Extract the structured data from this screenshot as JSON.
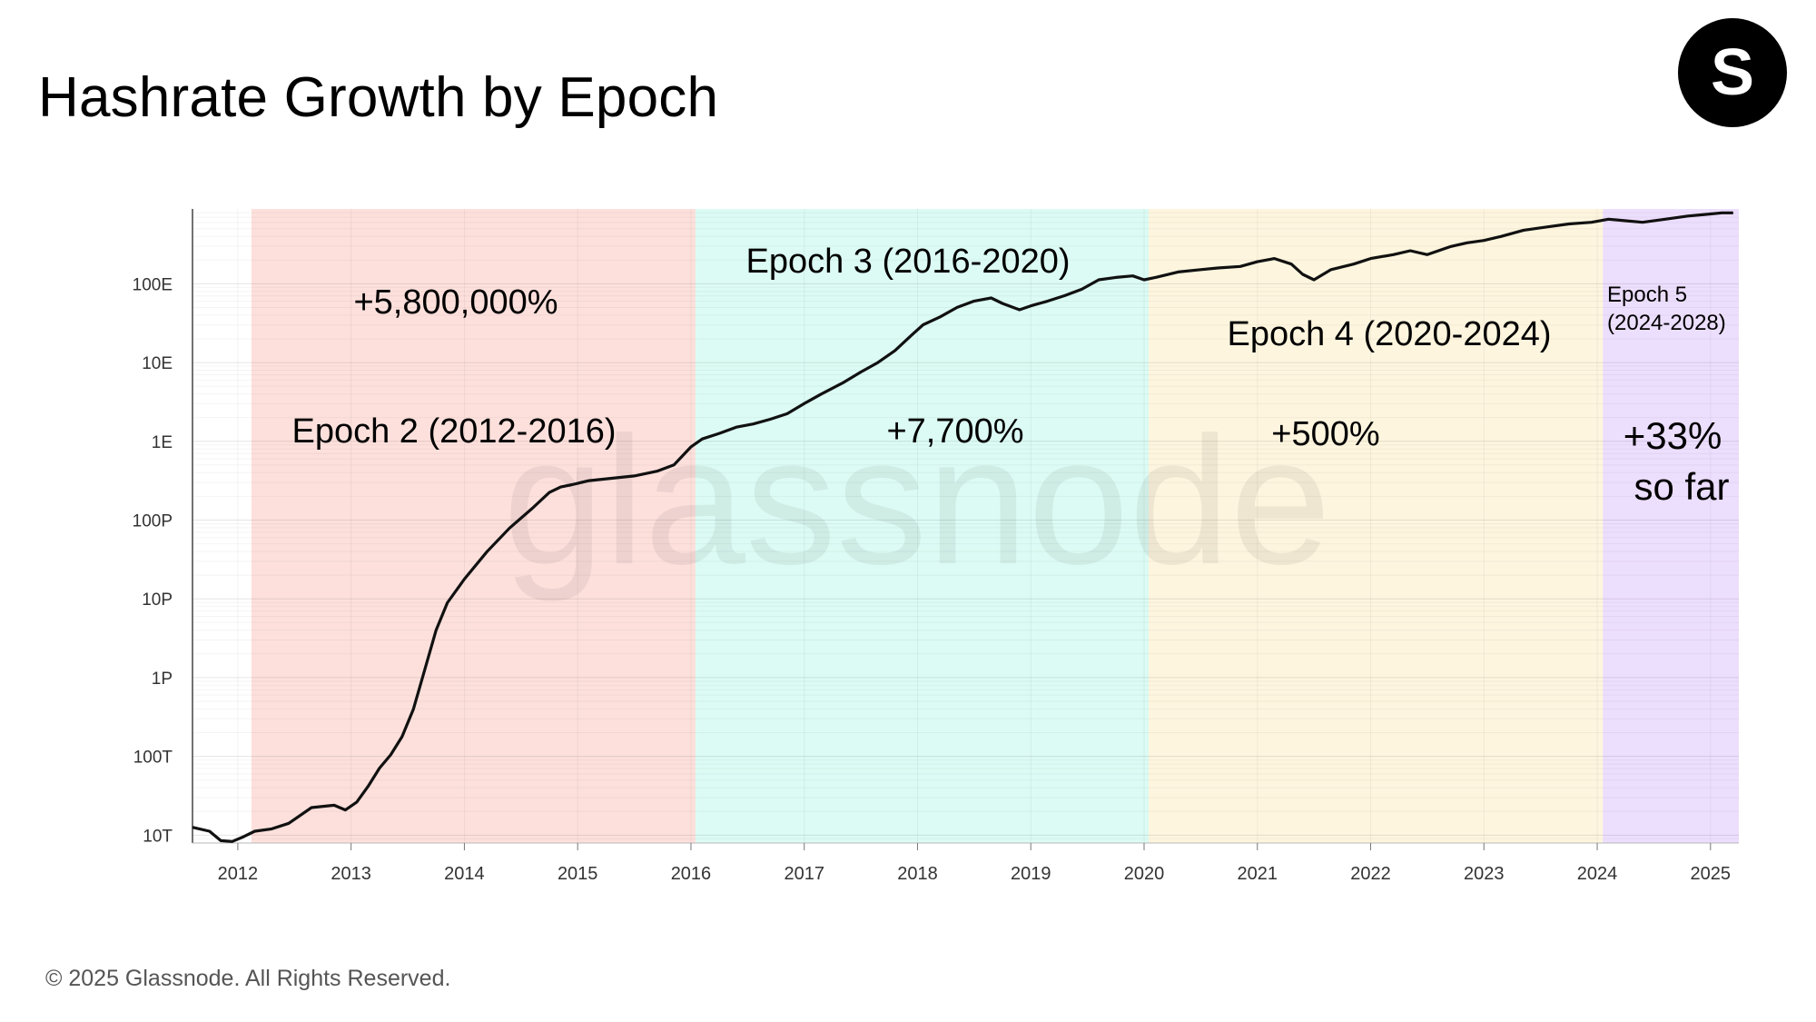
{
  "title": "Hashrate Growth by Epoch",
  "brand": {
    "logo_letter": "S"
  },
  "footer": {
    "copyright": "© 2025 Glassnode. All Rights Reserved."
  },
  "watermark": "glassnode",
  "colors": {
    "epoch2": "#fde0dc",
    "epoch3": "#dcfbf4",
    "epoch4": "#fdf5de",
    "epoch5": "#ecdefd",
    "line": "#111111",
    "watermark": "#000000",
    "axis_text": "#333333"
  },
  "chart_data": {
    "type": "line",
    "xlabel": "",
    "ylabel": "",
    "x_range": [
      2011.6,
      2025.25
    ],
    "y_scale": "log",
    "y_range_log10": [
      12.9,
      20.95
    ],
    "y_ticks": [
      {
        "label": "10T",
        "log10": 13
      },
      {
        "label": "100T",
        "log10": 14
      },
      {
        "label": "1P",
        "log10": 15
      },
      {
        "label": "10P",
        "log10": 16
      },
      {
        "label": "100P",
        "log10": 17
      },
      {
        "label": "1E",
        "log10": 18
      },
      {
        "label": "10E",
        "log10": 19
      },
      {
        "label": "100E",
        "log10": 20
      }
    ],
    "x_ticks": [
      "2012",
      "2013",
      "2014",
      "2015",
      "2016",
      "2017",
      "2018",
      "2019",
      "2020",
      "2021",
      "2022",
      "2023",
      "2024",
      "2025"
    ],
    "grid": true,
    "epochs": [
      {
        "name": "Epoch 2 (2012-2016)",
        "change": "+5,800,000%",
        "start": 2012.12,
        "end": 2016.04,
        "color_key": "epoch2"
      },
      {
        "name": "Epoch 3 (2016-2020)",
        "change": "+7,700%",
        "start": 2016.04,
        "end": 2020.04,
        "color_key": "epoch3"
      },
      {
        "name": "Epoch 4 (2020-2024)",
        "change": "+500%",
        "start": 2020.04,
        "end": 2024.05,
        "color_key": "epoch4"
      },
      {
        "name": "Epoch 5",
        "name_line2": "(2024-2028)",
        "change": "+33%",
        "change_line2": "so far",
        "start": 2024.05,
        "end": 2025.25,
        "color_key": "epoch5"
      }
    ],
    "series": [
      {
        "x": [
          2011.6,
          2011.75,
          2011.85,
          2011.95,
          2012.05,
          2012.15,
          2012.3,
          2012.45,
          2012.65,
          2012.85,
          2012.95,
          2013.05,
          2013.15,
          2013.25,
          2013.35,
          2013.45,
          2013.55,
          2013.65,
          2013.75,
          2013.85,
          2014.0,
          2014.2,
          2014.4,
          2014.6,
          2014.75,
          2014.85,
          2014.95,
          2015.1,
          2015.3,
          2015.5,
          2015.7,
          2015.85,
          2016.0,
          2016.1,
          2016.25,
          2016.4,
          2016.55,
          2016.7,
          2016.85,
          2017.0,
          2017.15,
          2017.35,
          2017.5,
          2017.65,
          2017.8,
          2017.95,
          2018.05,
          2018.2,
          2018.35,
          2018.5,
          2018.65,
          2018.75,
          2018.9,
          2019.0,
          2019.15,
          2019.3,
          2019.45,
          2019.6,
          2019.75,
          2019.9,
          2020.0,
          2020.1,
          2020.3,
          2020.5,
          2020.65,
          2020.85,
          2021.0,
          2021.15,
          2021.3,
          2021.4,
          2021.5,
          2021.65,
          2021.85,
          2022.0,
          2022.2,
          2022.35,
          2022.5,
          2022.7,
          2022.85,
          2023.0,
          2023.15,
          2023.35,
          2023.55,
          2023.75,
          2023.95,
          2024.1,
          2024.25,
          2024.4,
          2024.6,
          2024.8,
          2024.95,
          2025.1,
          2025.2
        ],
        "y_log10": [
          13.1,
          13.05,
          12.93,
          12.92,
          12.98,
          13.05,
          13.08,
          13.15,
          13.35,
          13.38,
          13.32,
          13.42,
          13.62,
          13.85,
          14.02,
          14.25,
          14.6,
          15.1,
          15.6,
          15.95,
          16.25,
          16.6,
          16.9,
          17.15,
          17.35,
          17.42,
          17.45,
          17.5,
          17.53,
          17.56,
          17.62,
          17.7,
          17.93,
          18.03,
          18.1,
          18.18,
          18.22,
          18.28,
          18.35,
          18.48,
          18.6,
          18.75,
          18.88,
          19.0,
          19.15,
          19.35,
          19.48,
          19.58,
          19.7,
          19.78,
          19.82,
          19.75,
          19.67,
          19.72,
          19.78,
          19.85,
          19.93,
          20.05,
          20.08,
          20.1,
          20.05,
          20.08,
          20.15,
          20.18,
          20.2,
          20.22,
          20.28,
          20.32,
          20.25,
          20.12,
          20.05,
          20.18,
          20.25,
          20.32,
          20.37,
          20.42,
          20.37,
          20.47,
          20.52,
          20.55,
          20.6,
          20.68,
          20.72,
          20.76,
          20.78,
          20.82,
          20.8,
          20.78,
          20.82,
          20.86,
          20.88,
          20.9,
          20.9
        ]
      }
    ]
  }
}
